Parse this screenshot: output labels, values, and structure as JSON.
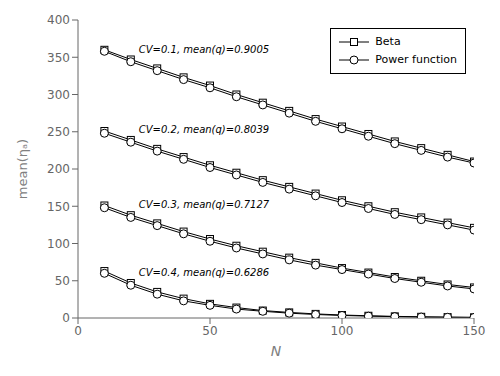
{
  "chart_data": {
    "type": "line",
    "xlabel": "N",
    "ylabel": "mean(ηₐ)",
    "x": [
      10,
      20,
      30,
      40,
      50,
      60,
      70,
      80,
      90,
      100,
      110,
      120,
      130,
      140,
      150
    ],
    "series": [
      {
        "name": "Beta",
        "color": "#000000",
        "marker": "square",
        "values": [
          360,
          347,
          335,
          323,
          312,
          300,
          289,
          278,
          267,
          257,
          247,
          237,
          228,
          219,
          210
        ]
      },
      {
        "name": "Power function",
        "color": "#000000",
        "marker": "circle",
        "values": [
          358,
          344,
          332,
          320,
          309,
          297,
          286,
          275,
          264,
          254,
          244,
          234,
          225,
          216,
          208
        ]
      },
      {
        "name": "Beta",
        "color": "#000000",
        "marker": "square",
        "values": [
          251,
          239,
          227,
          216,
          205,
          195,
          185,
          176,
          167,
          158,
          150,
          142,
          135,
          128,
          121
        ]
      },
      {
        "name": "Power function",
        "color": "#000000",
        "marker": "circle",
        "values": [
          248,
          236,
          224,
          213,
          202,
          192,
          182,
          173,
          164,
          155,
          147,
          139,
          132,
          125,
          118
        ]
      },
      {
        "name": "Beta",
        "color": "#000000",
        "marker": "square",
        "values": [
          151,
          138,
          127,
          116,
          106,
          97,
          89,
          81,
          74,
          67,
          61,
          55,
          50,
          45,
          41
        ]
      },
      {
        "name": "Power function",
        "color": "#000000",
        "marker": "circle",
        "values": [
          148,
          135,
          124,
          113,
          103,
          94,
          86,
          78,
          71,
          65,
          59,
          53,
          48,
          43,
          39
        ]
      },
      {
        "name": "Beta",
        "color": "#000000",
        "marker": "square",
        "values": [
          63,
          47,
          35,
          26,
          19,
          14,
          10,
          7.5,
          5.5,
          4.0,
          3.0,
          2.2,
          1.6,
          1.2,
          0.9
        ]
      },
      {
        "name": "Power function",
        "color": "#000000",
        "marker": "circle",
        "values": [
          60,
          44,
          32,
          23,
          17,
          12,
          9,
          6.5,
          4.7,
          3.4,
          2.5,
          1.8,
          1.3,
          0.95,
          0.7
        ]
      }
    ],
    "annotations": [
      "CV=0.1, mean(q)=0.9005",
      "CV=0.2, mean(q)=0.8039",
      "CV=0.3, mean(q)=0.7127",
      "CV=0.4, mean(q)=0.6286"
    ],
    "xlim": [
      0,
      150
    ],
    "ylim": [
      0,
      400
    ],
    "xticks": [
      0,
      50,
      100,
      150
    ],
    "yticks": [
      0,
      50,
      100,
      150,
      200,
      250,
      300,
      350,
      400
    ],
    "grid": false,
    "legend": "upper right"
  }
}
